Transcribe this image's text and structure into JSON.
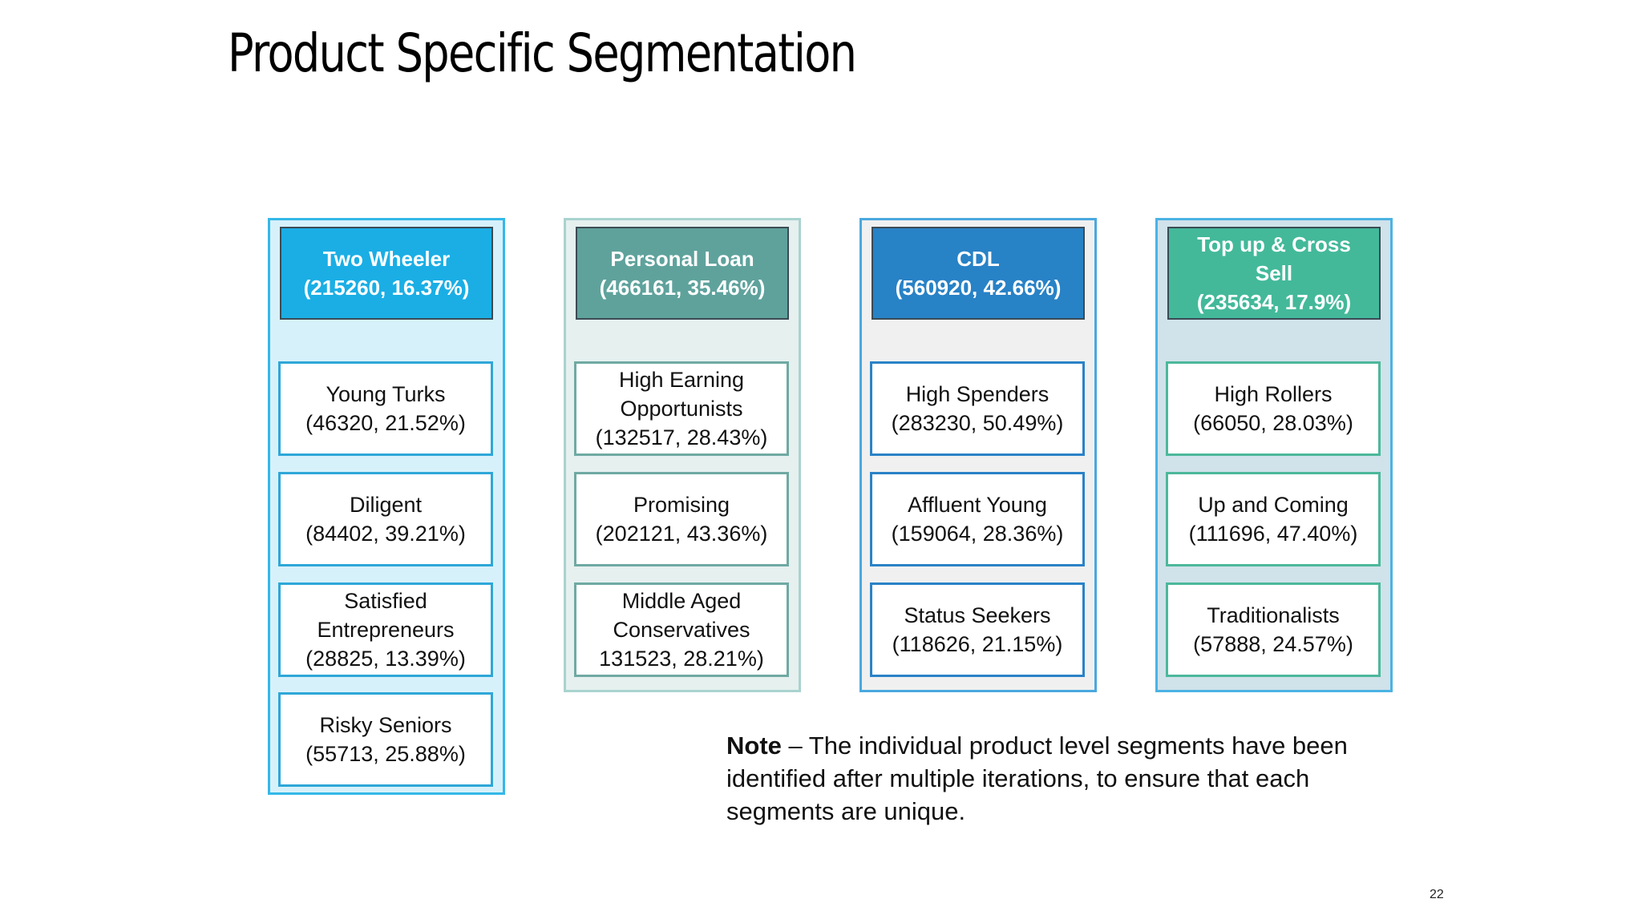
{
  "title": "Product Specific Segmentation",
  "columns": [
    {
      "header_lines": [
        "Two Wheeler",
        "(215260, 16.37%)"
      ],
      "colors": {
        "border": "#35b8e8",
        "bg": "#d7f1fa",
        "header": "#1aaee5",
        "seg_border": "#2ea7d8"
      },
      "segments": [
        {
          "lines": [
            "Young Turks",
            "(46320, 21.52%)"
          ]
        },
        {
          "lines": [
            "Diligent",
            "(84402, 39.21%)"
          ]
        },
        {
          "lines": [
            "Satisfied",
            "Entrepreneurs",
            "(28825, 13.39%)"
          ]
        },
        {
          "lines": [
            "Risky Seniors",
            "(55713, 25.88%)"
          ]
        }
      ]
    },
    {
      "header_lines": [
        "Personal Loan",
        "(466161, 35.46%)"
      ],
      "colors": {
        "border": "#a9d3cf",
        "bg": "#e5f0ef",
        "header": "#5fa29c",
        "seg_border": "#6fa9a3"
      },
      "segments": [
        {
          "lines": [
            "High Earning",
            "Opportunists",
            "(132517, 28.43%)"
          ]
        },
        {
          "lines": [
            "Promising",
            "(202121, 43.36%)"
          ]
        },
        {
          "lines": [
            "Middle Aged",
            "Conservatives",
            "131523, 28.21%)"
          ]
        }
      ]
    },
    {
      "header_lines": [
        "CDL",
        "(560920, 42.66%)"
      ],
      "colors": {
        "border": "#4aa8de",
        "bg": "#f0f0f0",
        "header": "#2882c6",
        "seg_border": "#2a82c7"
      },
      "segments": [
        {
          "lines": [
            "High Spenders",
            "(283230, 50.49%)"
          ]
        },
        {
          "lines": [
            "Affluent Young",
            "(159064, 28.36%)"
          ]
        },
        {
          "lines": [
            "Status Seekers",
            "(118626, 21.15%)"
          ]
        }
      ]
    },
    {
      "header_lines": [
        "Top up & Cross",
        "Sell",
        "(235634, 17.9%)"
      ],
      "colors": {
        "border": "#4bb3e3",
        "bg": "#d0e2ea",
        "header": "#43b99a",
        "seg_border": "#4cb89b"
      },
      "segments": [
        {
          "lines": [
            "High Rollers",
            "(66050, 28.03%)"
          ]
        },
        {
          "lines": [
            "Up and Coming",
            "(111696, 47.40%)"
          ]
        },
        {
          "lines": [
            "Traditionalists",
            "(57888, 24.57%)"
          ]
        }
      ]
    }
  ],
  "note": {
    "label": "Note",
    "text": " – The individual product level segments have been identified after multiple iterations, to ensure that each segments are unique."
  },
  "page_number": "22"
}
